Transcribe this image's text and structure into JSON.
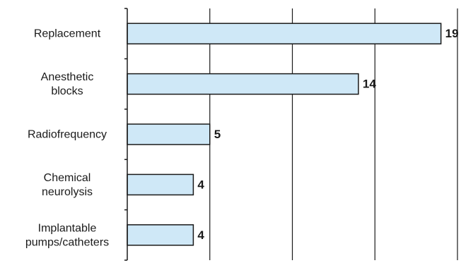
{
  "chart_data": {
    "type": "bar",
    "orientation": "horizontal",
    "categories": [
      [
        "Replacement"
      ],
      [
        "Anesthetic",
        "blocks"
      ],
      [
        "Radiofrequency"
      ],
      [
        "Chemical",
        "neurolysis"
      ],
      [
        "Implantable",
        "pumps/catheters"
      ]
    ],
    "values": [
      19,
      14,
      5,
      4,
      4
    ],
    "data_labels": [
      "19",
      "14",
      "5",
      "4",
      "4"
    ],
    "title": "",
    "xlabel": "",
    "ylabel": "",
    "xlim": [
      0,
      20
    ],
    "x_grid_step": 5,
    "grid": true,
    "legend": "none",
    "colors": {
      "bar_fill": "#cfe8f7",
      "bar_stroke": "#1a1a1a",
      "axis": "#1a1a1a",
      "grid": "#1a1a1a",
      "text": "#1a1a1a"
    }
  }
}
